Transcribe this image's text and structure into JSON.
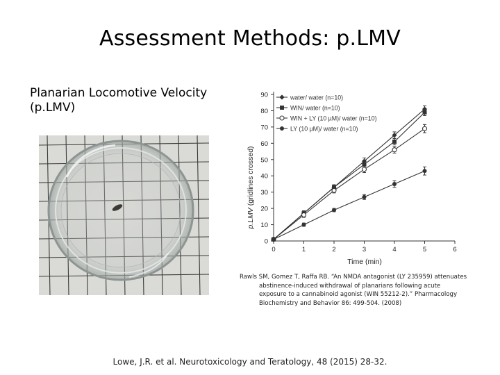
{
  "slide": {
    "title": "Assessment Methods: p.LMV",
    "subtitle_line1": "Planarian Locomotive Velocity",
    "subtitle_line2": "(p.LMV)",
    "reference_short": "Rawls SM, Gomez T, Raffa RB. “An NMDA antagonist (LY 235959) attenuates abstinence-induced withdrawal of planarians following acute exposure to a cannabinoid agonist (WIN 55212-2).” Pharmacology Biochemistry and Behavior 86: 499-504. (2008)",
    "reference_short_first": "Rawls SM, Gomez T, Raffa RB. “An NMDA antagonist (LY 235959) attenuates",
    "reference_short_rest": "abstinence-induced withdrawal of planarians following acute exposure to a cannabinoid agonist (WIN 55212-2).” Pharmacology Biochemistry and Behavior 86: 499-504. (2008)",
    "reference_main": "Lowe, J.R. et al. Neurotoxicology and Teratology, 48 (2015) 28-32."
  },
  "photo": {
    "description_icon": "planarian-dish-photo",
    "colors": {
      "grid_line": "#2a2a2a",
      "paper": "#d9d9d6",
      "dish": "#c8ccc9",
      "worm": "#3b3a33"
    }
  },
  "chart_data": {
    "type": "line",
    "xlabel": "Time (min)",
    "ylabel": "p.LMV (gridlines crossed)",
    "ylabel_italic": "p.LMV",
    "ylabel_rest": " (gridlines crossed)",
    "xlim": [
      0,
      6
    ],
    "ylim": [
      0,
      90
    ],
    "xticks": [
      0,
      1,
      2,
      3,
      4,
      5,
      6
    ],
    "yticks": [
      0,
      10,
      20,
      30,
      40,
      50,
      60,
      70,
      80,
      90
    ],
    "grid": false,
    "legend_position": "top-left",
    "series": [
      {
        "name": "water/ water (n=10)",
        "marker": "diamond",
        "x": [
          0,
          1,
          2,
          3,
          4,
          5
        ],
        "y": [
          1,
          17,
          33,
          49,
          65,
          81
        ],
        "err": [
          0,
          1.5,
          1.5,
          2,
          2,
          2
        ]
      },
      {
        "name": "WIN/ water (n=10)",
        "marker": "square",
        "x": [
          0,
          1,
          2,
          3,
          4,
          5
        ],
        "y": [
          1,
          17,
          33,
          47,
          61,
          79
        ],
        "err": [
          0,
          1.5,
          1.5,
          2,
          2,
          2
        ]
      },
      {
        "name": "WIN + LY (10 µM)/ water (n=10)",
        "marker": "open-circle",
        "x": [
          0,
          1,
          2,
          3,
          4,
          5
        ],
        "y": [
          1,
          16,
          31,
          44,
          56,
          69
        ],
        "err": [
          0,
          1.5,
          1.5,
          2,
          2,
          2.5
        ]
      },
      {
        "name": "LY (10 µM)/ water (n=10)",
        "marker": "filled-circle",
        "x": [
          0,
          1,
          2,
          3,
          4,
          5
        ],
        "y": [
          1,
          10,
          19,
          27,
          35,
          43
        ],
        "err": [
          0,
          1,
          1,
          1.5,
          2,
          2.5
        ]
      }
    ]
  }
}
